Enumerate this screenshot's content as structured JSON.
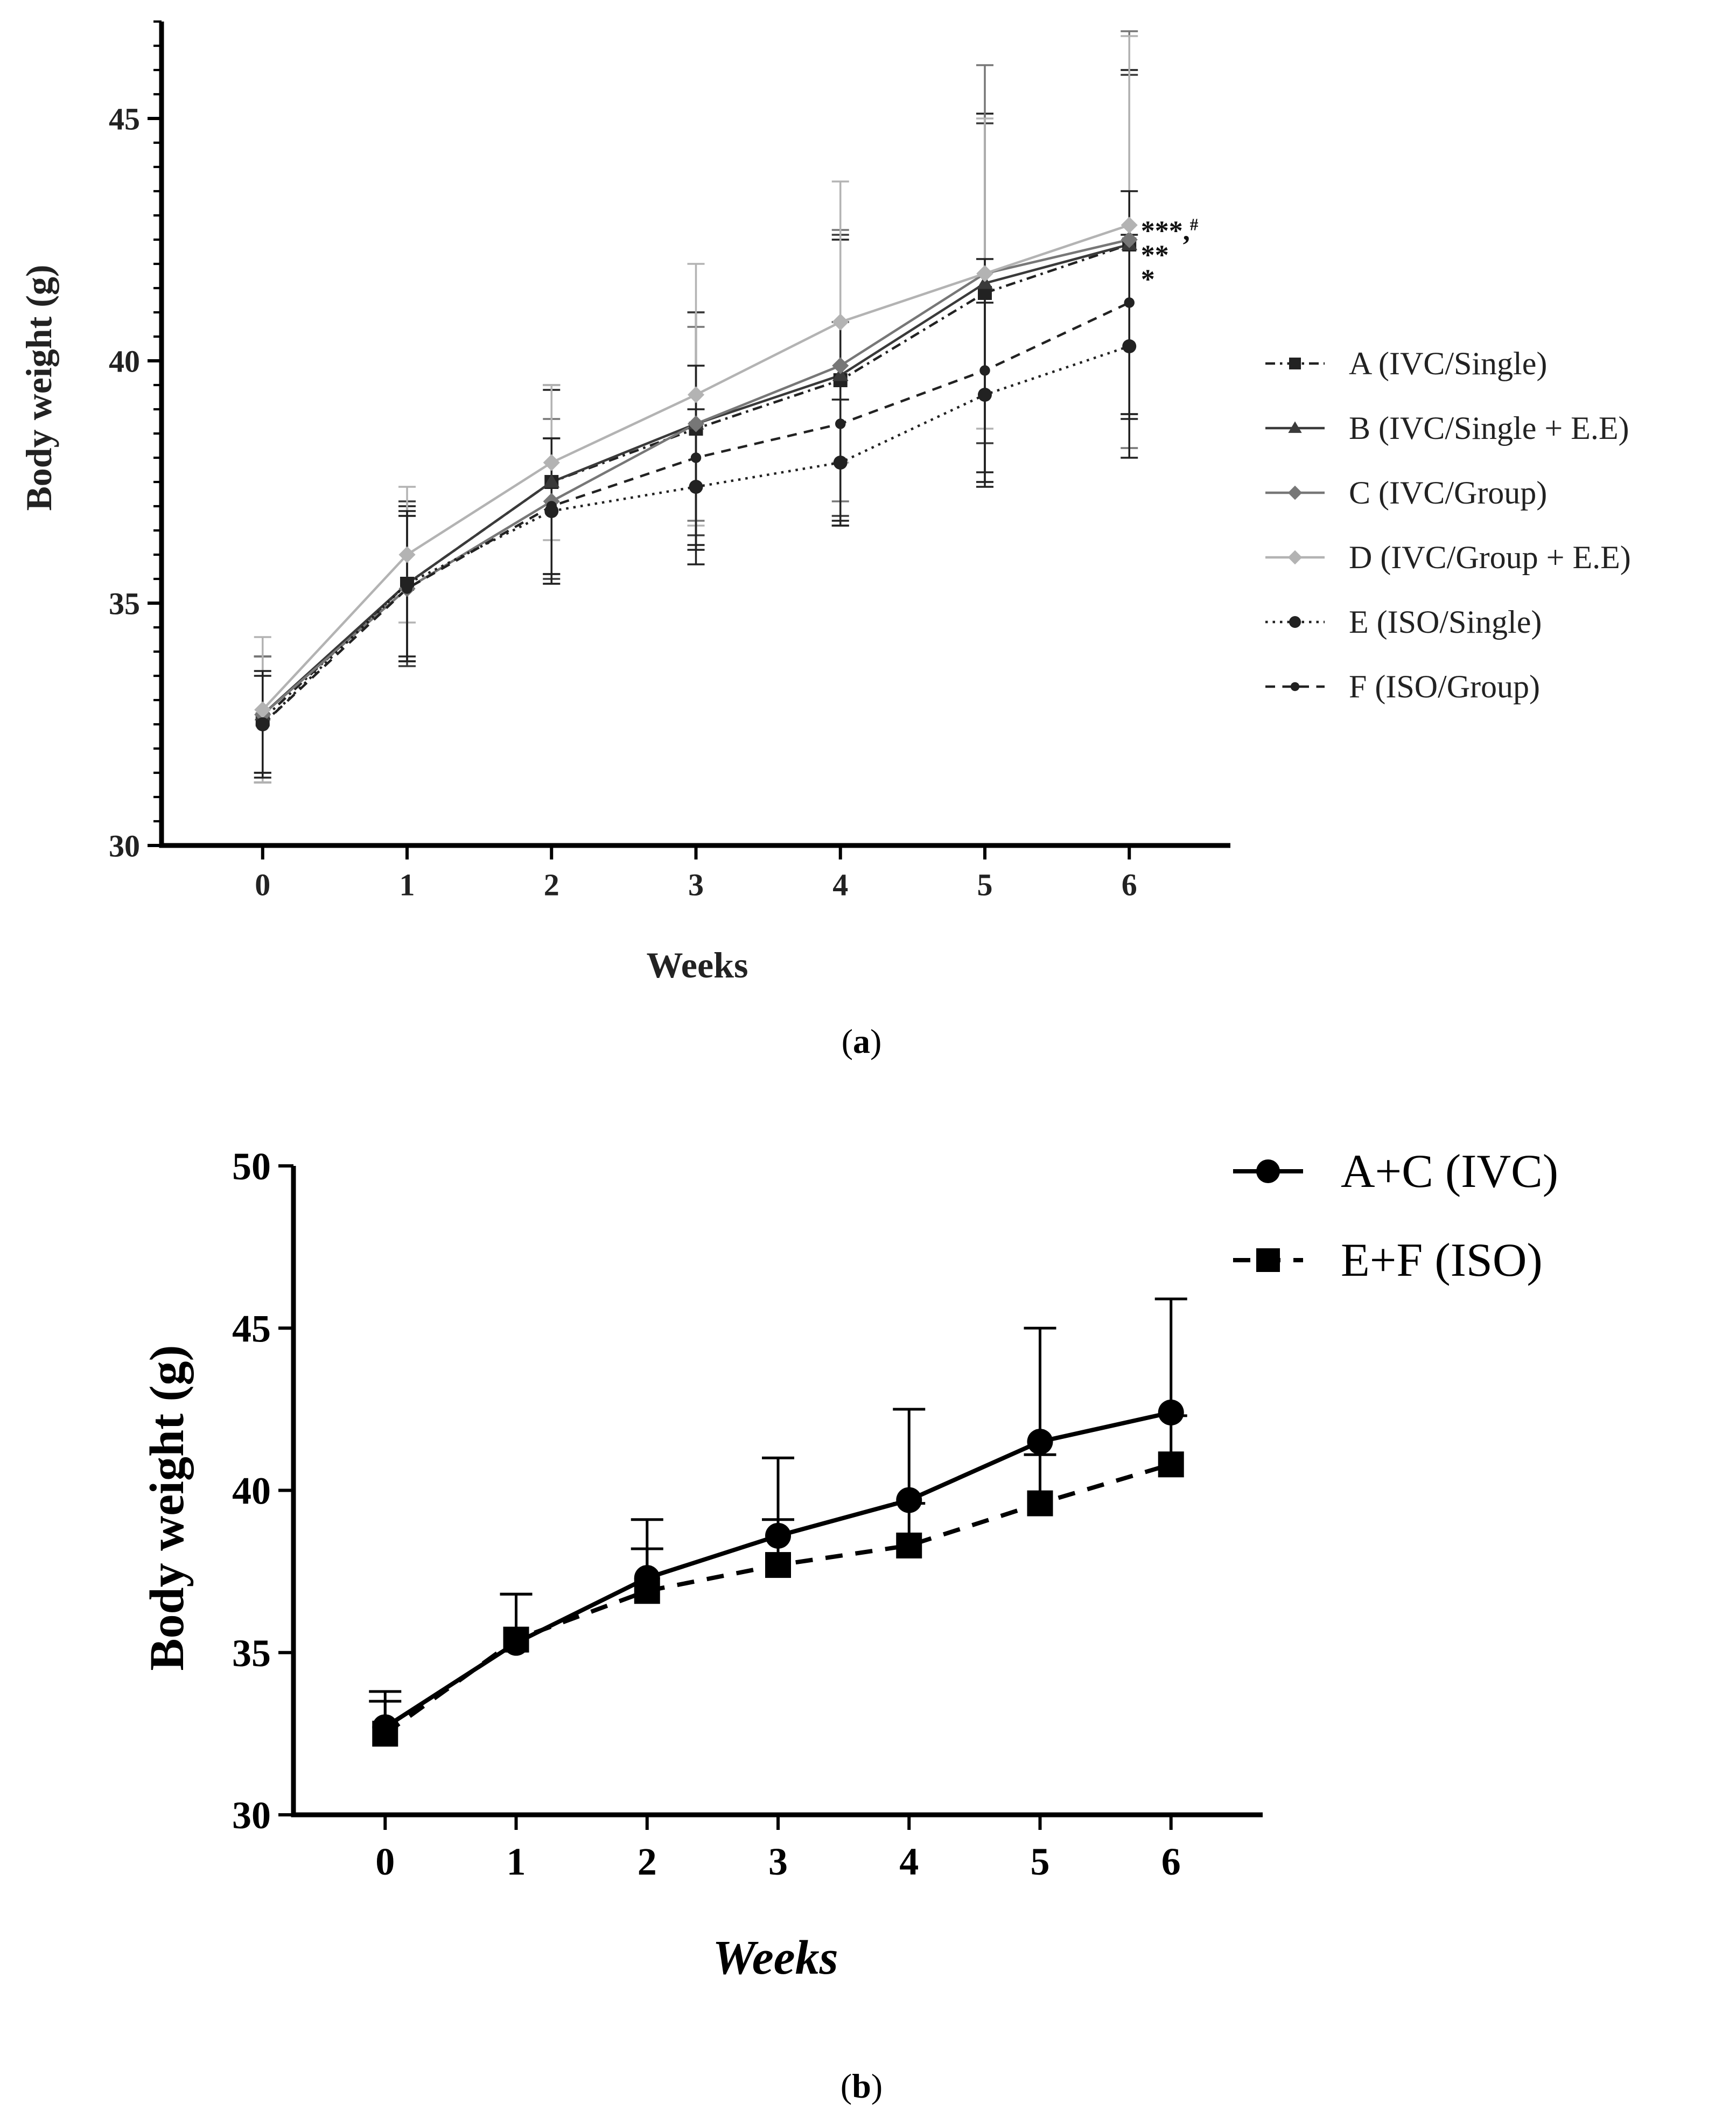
{
  "chart_data": [
    {
      "id": "a",
      "type": "line",
      "panel_label": "(a)",
      "panel_letter": "a",
      "title": "",
      "xlabel": "Weeks",
      "ylabel": "Body weight (g)",
      "x": [
        0,
        1,
        2,
        3,
        4,
        5,
        6
      ],
      "xlim": [
        -0.7,
        6.7
      ],
      "ylim": [
        30,
        47
      ],
      "yticks": [
        30,
        35,
        40,
        45
      ],
      "y_minor_step": 0.5,
      "grid": false,
      "legend_position": "right",
      "annotations": [
        {
          "text": "***,",
          "sup": "#",
          "x": 6.08,
          "y": 42.75
        },
        {
          "text": "**",
          "x": 6.08,
          "y": 42.25
        },
        {
          "text": "*",
          "x": 6.08,
          "y": 41.75
        }
      ],
      "series": [
        {
          "name": "A (IVC/Single)",
          "marker": "square",
          "dash": "dashdot",
          "color": "#222222",
          "values": [
            32.6,
            35.4,
            37.5,
            38.6,
            39.6,
            41.4,
            42.4
          ],
          "errors": [
            1.3,
            1.6,
            1.9,
            2.4,
            2.9,
            3.7,
            3.6
          ]
        },
        {
          "name": "B (IVC/Single + E.E)",
          "marker": "triangle",
          "dash": "solid",
          "color": "#3a3a3a",
          "values": [
            32.7,
            35.4,
            37.5,
            38.7,
            39.7,
            41.6,
            42.4
          ],
          "errors": [
            1.2,
            1.7,
            2.0,
            2.3,
            2.9,
            3.3,
            3.5
          ]
        },
        {
          "name": "C (IVC/Group)",
          "marker": "diamond",
          "dash": "solid",
          "color": "#777777",
          "values": [
            32.7,
            35.3,
            37.1,
            38.7,
            39.9,
            41.8,
            42.5
          ],
          "errors": [
            1.2,
            1.5,
            1.7,
            2.0,
            2.8,
            4.3,
            4.3
          ]
        },
        {
          "name": "D (IVC/Group + E.E)",
          "marker": "diamond",
          "dash": "solid",
          "color": "#b3b3b3",
          "values": [
            32.8,
            36.0,
            37.9,
            39.3,
            40.8,
            41.8,
            42.8
          ],
          "errors": [
            1.5,
            1.4,
            1.6,
            2.7,
            2.9,
            3.2,
            3.9
          ]
        },
        {
          "name": "E (ISO/Single)",
          "marker": "circle",
          "dash": "dotted",
          "color": "#222222",
          "values": [
            32.5,
            35.4,
            36.9,
            37.4,
            37.9,
            39.3,
            40.3
          ],
          "errors": [
            1.1,
            1.5,
            1.5,
            1.6,
            1.3,
            1.9,
            2.3
          ]
        },
        {
          "name": "F (ISO/Group)",
          "marker": "circle-small",
          "dash": "dashed",
          "color": "#222222",
          "values": [
            32.5,
            35.3,
            37.0,
            38.0,
            38.7,
            39.8,
            41.2
          ],
          "errors": [
            1.0,
            1.5,
            1.4,
            1.9,
            2.1,
            2.3,
            2.3
          ]
        }
      ]
    },
    {
      "id": "b",
      "type": "line",
      "panel_label": "(b)",
      "panel_letter": "b",
      "title": "",
      "xlabel": "Weeks",
      "ylabel": "Body weight (g)",
      "x": [
        0,
        1,
        2,
        3,
        4,
        5,
        6
      ],
      "xlim": [
        -0.7,
        6.7
      ],
      "ylim": [
        30,
        50
      ],
      "yticks": [
        30,
        35,
        40,
        45,
        50
      ],
      "grid": false,
      "legend_position": "top-right",
      "series": [
        {
          "name": "A+C (IVC)",
          "marker": "circle",
          "dash": "solid",
          "color": "#000000",
          "values": [
            32.7,
            35.3,
            37.3,
            38.6,
            39.7,
            41.5,
            42.4
          ],
          "errors": [
            1.1,
            1.5,
            1.8,
            2.4,
            2.8,
            3.5,
            3.5
          ]
        },
        {
          "name": "E+F (ISO)",
          "marker": "square",
          "dash": "dashed",
          "color": "#000000",
          "values": [
            32.5,
            35.4,
            36.9,
            37.7,
            38.3,
            39.6,
            40.8
          ],
          "errors": [
            1.0,
            1.4,
            1.3,
            1.4,
            1.3,
            1.5,
            1.5
          ]
        }
      ]
    }
  ]
}
